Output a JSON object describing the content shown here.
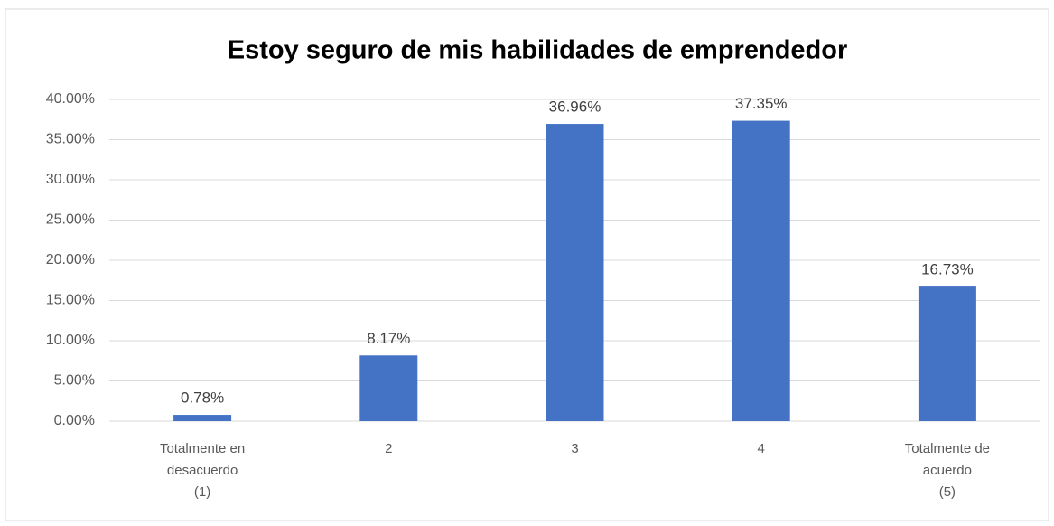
{
  "chart_data": {
    "type": "bar",
    "title": "Estoy seguro de mis habilidades de emprendedor",
    "categories": [
      "Totalmente en\ndesacuerdo\n(1)",
      "2",
      "3",
      "4",
      "Totalmente de\nacuerdo\n(5)"
    ],
    "values": [
      0.78,
      8.17,
      36.96,
      37.35,
      16.73
    ],
    "value_labels": [
      "0.78%",
      "8.17%",
      "36.96%",
      "37.35%",
      "16.73%"
    ],
    "color": "#4472c4",
    "ylim": [
      0,
      40
    ],
    "yticks": [
      {
        "value": 0,
        "label": "0.00%"
      },
      {
        "value": 5,
        "label": "5.00%"
      },
      {
        "value": 10,
        "label": "10.00%"
      },
      {
        "value": 15,
        "label": "15.00%"
      },
      {
        "value": 20,
        "label": "20.00%"
      },
      {
        "value": 25,
        "label": "25.00%"
      },
      {
        "value": 30,
        "label": "30.00%"
      },
      {
        "value": 35,
        "label": "35.00%"
      },
      {
        "value": 40,
        "label": "40.00%"
      }
    ],
    "grid": true
  }
}
